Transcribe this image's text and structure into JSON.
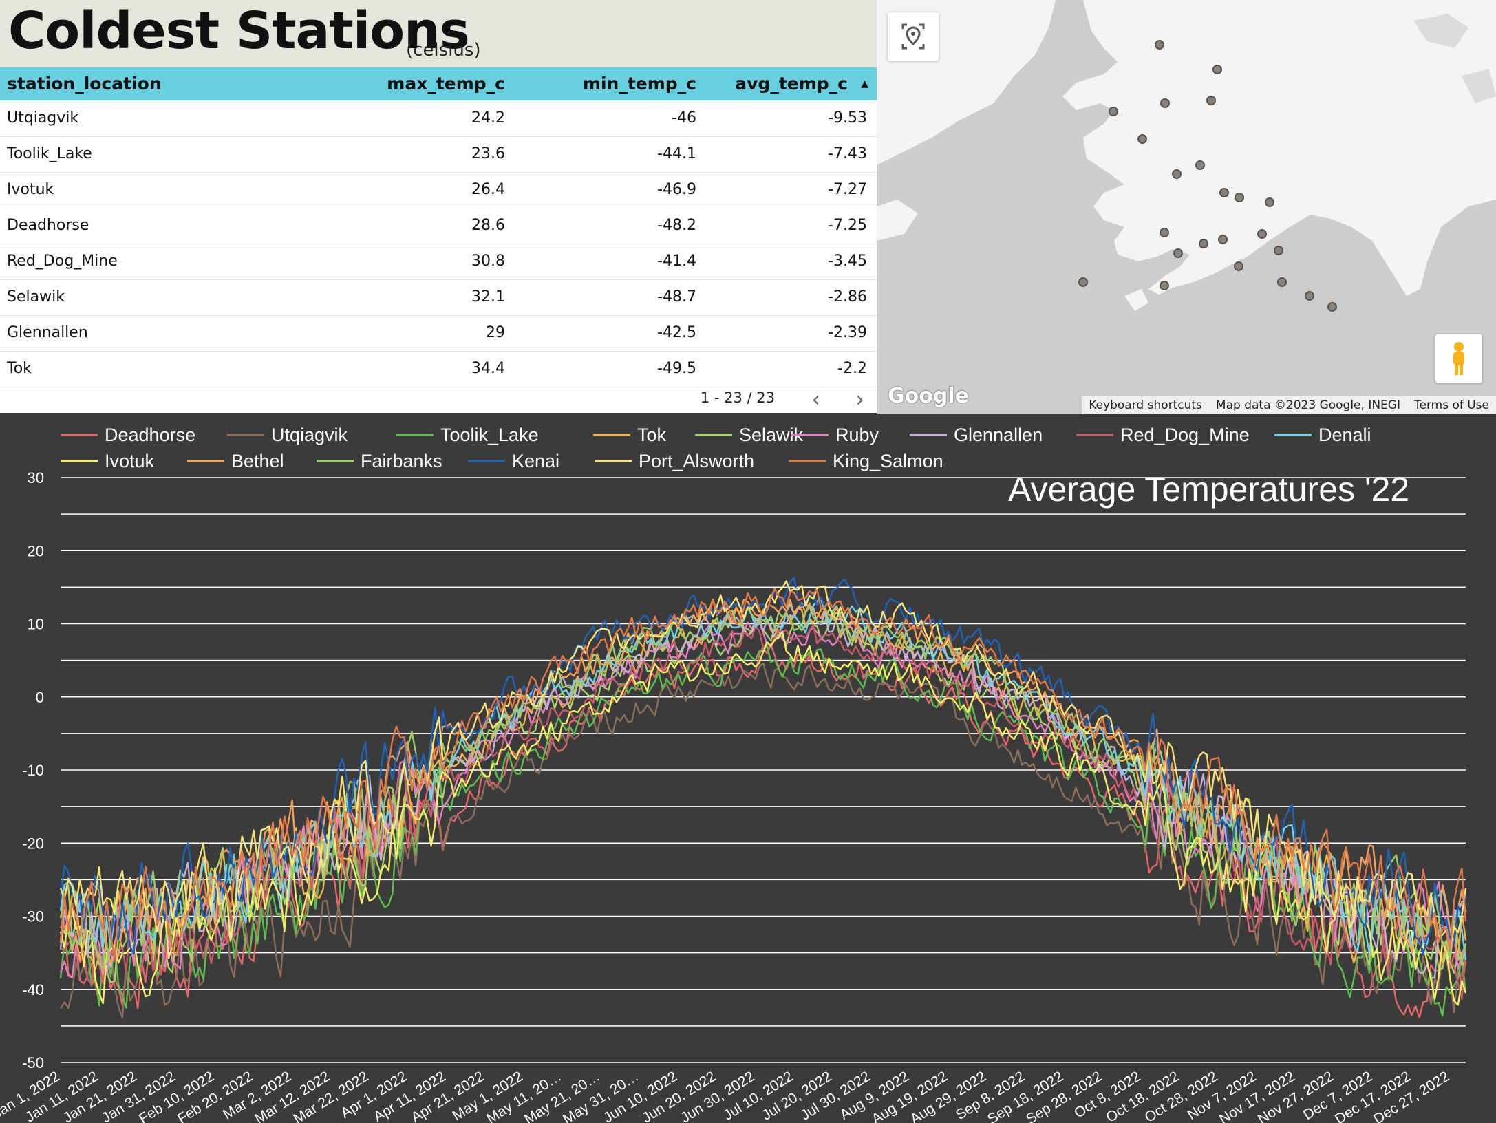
{
  "header": {
    "title": "Coldest Stations",
    "subtitle": "(celsius)"
  },
  "table": {
    "columns": [
      "station_location",
      "max_temp_c",
      "min_temp_c",
      "avg_temp_c"
    ],
    "sort_column": "avg_temp_c",
    "rows": [
      [
        "Utqiagvik",
        "24.2",
        "-46",
        "-9.53"
      ],
      [
        "Toolik_Lake",
        "23.6",
        "-44.1",
        "-7.43"
      ],
      [
        "Ivotuk",
        "26.4",
        "-46.9",
        "-7.27"
      ],
      [
        "Deadhorse",
        "28.6",
        "-48.2",
        "-7.25"
      ],
      [
        "Red_Dog_Mine",
        "30.8",
        "-41.4",
        "-3.45"
      ],
      [
        "Selawik",
        "32.1",
        "-48.7",
        "-2.86"
      ],
      [
        "Glennallen",
        "29",
        "-42.5",
        "-2.39"
      ],
      [
        "Tok",
        "34.4",
        "-49.5",
        "-2.2"
      ]
    ],
    "pager": "1 - 23 / 23"
  },
  "map": {
    "logo": "Google",
    "attribution": [
      "Keyboard shortcuts",
      "Map data ©2023 Google, INEGI",
      "Terms of Use"
    ],
    "icons": {
      "locate": "locate-me-icon",
      "pegman": "street-view-pegman-icon"
    }
  },
  "chart_data": {
    "type": "line",
    "title": "Average Temperatures '22",
    "xlabel": "",
    "ylabel": "",
    "ylim": [
      -50,
      30
    ],
    "yticks": [
      "30",
      "20",
      "10",
      "0",
      "-10",
      "-20",
      "-30",
      "-40",
      "-50"
    ],
    "grid": true,
    "legend_position": "top",
    "x_tick_labels": [
      "Jan 1, 2022",
      "Jan 11, 2022",
      "Jan 21, 2022",
      "Jan 31, 2022",
      "Feb 10, 2022",
      "Feb 20, 2022",
      "Mar 2, 2022",
      "Mar 12, 2022",
      "Mar 22, 2022",
      "Apr 1, 2022",
      "Apr 11, 2022",
      "Apr 21, 2022",
      "May 1, 2022",
      "May 11, 20…",
      "May 21, 20…",
      "May 31, 20…",
      "Jun 10, 2022",
      "Jun 20, 2022",
      "Jun 30, 2022",
      "Jul 10, 2022",
      "Jul 20, 2022",
      "Jul 30, 2022",
      "Aug 9, 2022",
      "Aug 19, 2022",
      "Aug 29, 2022",
      "Sep 8, 2022",
      "Sep 18, 2022",
      "Sep 28, 2022",
      "Oct 8, 2022",
      "Oct 18, 2022",
      "Oct 28, 2022",
      "Nov 7, 2022",
      "Nov 17, 2022",
      "Nov 27, 2022",
      "Dec 7, 2022",
      "Dec 17, 2022",
      "Dec 27, 2022"
    ],
    "series": [
      {
        "name": "Deadhorse",
        "color": "#e5676a",
        "offset": -6
      },
      {
        "name": "Utqiagvik",
        "color": "#8d6e5a",
        "offset": -8
      },
      {
        "name": "Toolik_Lake",
        "color": "#5fbd4f",
        "offset": -6
      },
      {
        "name": "Tok",
        "color": "#f2b24a",
        "offset": -1
      },
      {
        "name": "Selawik",
        "color": "#a8d36a",
        "offset": -2
      },
      {
        "name": "Ruby",
        "color": "#e27fc0",
        "offset": -2
      },
      {
        "name": "Glennallen",
        "color": "#c2b0d6",
        "offset": -1
      },
      {
        "name": "Red_Dog_Mine",
        "color": "#c85a6a",
        "offset": -3
      },
      {
        "name": "Denali",
        "color": "#6ed3e6",
        "offset": 0
      },
      {
        "name": "Ivotuk",
        "color": "#f4ec6a",
        "offset": -5
      },
      {
        "name": "Bethel",
        "color": "#f2a15a",
        "offset": 1
      },
      {
        "name": "Fairbanks",
        "color": "#9ccc6a",
        "offset": 0
      },
      {
        "name": "Kenai",
        "color": "#1f63b8",
        "offset": 3
      },
      {
        "name": "Port_Alsworth",
        "color": "#f7e37a",
        "offset": 2
      },
      {
        "name": "King_Salmon",
        "color": "#e1784a",
        "offset": 2
      }
    ]
  }
}
